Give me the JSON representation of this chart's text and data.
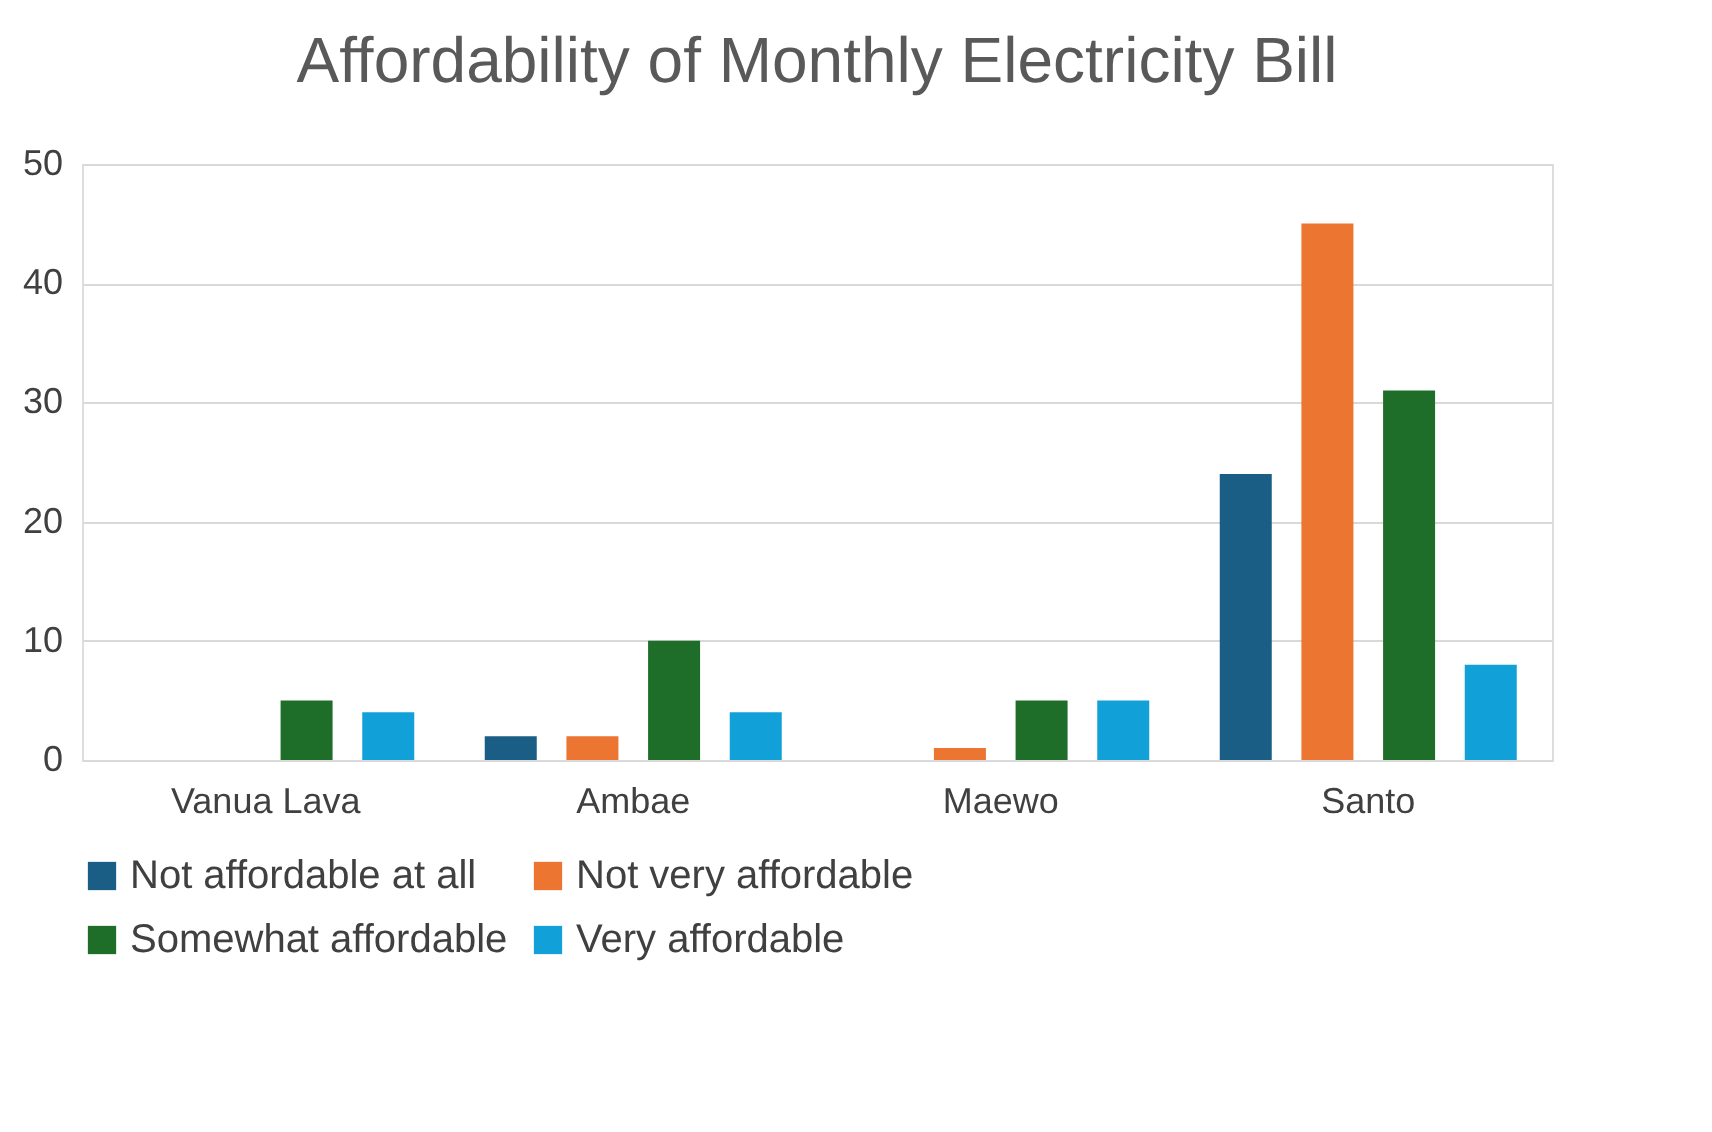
{
  "chart_data": {
    "type": "bar",
    "title": "Affordability of Monthly Electricity Bill",
    "categories": [
      "Vanua Lava",
      "Ambae",
      "Maewo",
      "Santo"
    ],
    "series": [
      {
        "name": "Not affordable at all",
        "color": "#1b5e85",
        "values": [
          0,
          2,
          0,
          24
        ]
      },
      {
        "name": "Not very affordable",
        "color": "#ed7532",
        "values": [
          0,
          2,
          1,
          45
        ]
      },
      {
        "name": "Somewhat affordable",
        "color": "#1e6e2a",
        "values": [
          5,
          10,
          5,
          31
        ]
      },
      {
        "name": "Very affordable",
        "color": "#12a0d8",
        "values": [
          4,
          4,
          5,
          8
        ]
      }
    ],
    "ylim": [
      0,
      50
    ],
    "yticks": [
      0,
      10,
      20,
      30,
      40,
      50
    ],
    "grid": "y",
    "legend": "bottom"
  }
}
